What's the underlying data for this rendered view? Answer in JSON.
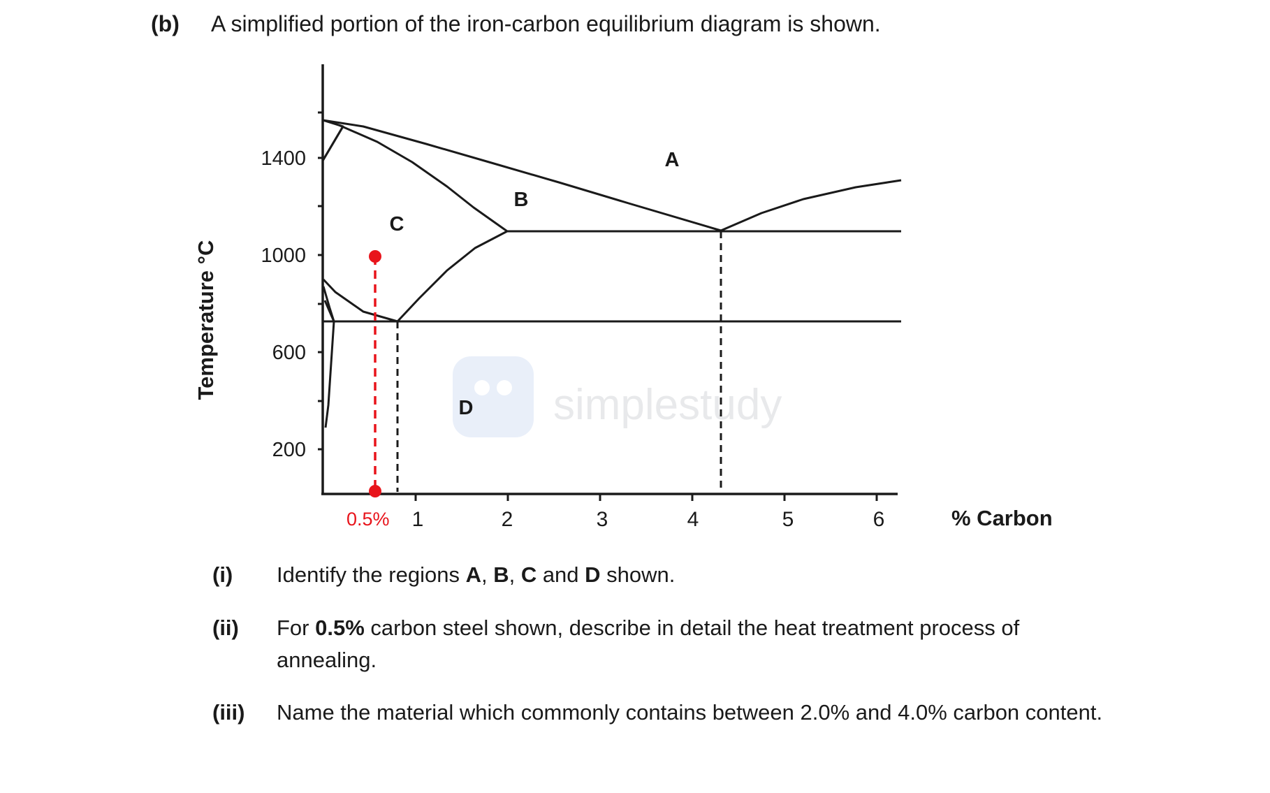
{
  "question": {
    "number": "(b)",
    "text": "A simplified portion of the iron-carbon equilibrium diagram is shown."
  },
  "diagram": {
    "y_axis_label": "Temperature °C",
    "x_axis_label": "% Carbon",
    "y_ticks": [
      "1400",
      "1000",
      "600",
      "200"
    ],
    "x_ticks": [
      "1",
      "2",
      "3",
      "4",
      "5",
      "6"
    ],
    "marker_label": "0.5%",
    "regions": [
      "A",
      "B",
      "C",
      "D"
    ],
    "watermark": "simplestudy",
    "marker_color": "#e8141b"
  },
  "parts": [
    {
      "number": "(i)",
      "segments": [
        {
          "t": "Identify the regions ",
          "b": false
        },
        {
          "t": "A",
          "b": true
        },
        {
          "t": ", ",
          "b": false
        },
        {
          "t": "B",
          "b": true
        },
        {
          "t": ", ",
          "b": false
        },
        {
          "t": "C",
          "b": true
        },
        {
          "t": " and ",
          "b": false
        },
        {
          "t": "D",
          "b": true
        },
        {
          "t": " shown.",
          "b": false
        }
      ]
    },
    {
      "number": "(ii)",
      "segments": [
        {
          "t": "For ",
          "b": false
        },
        {
          "t": "0.5%",
          "b": true
        },
        {
          "t": " carbon steel shown, describe in detail the heat treatment process of annealing.",
          "b": false
        }
      ]
    },
    {
      "number": "(iii)",
      "segments": [
        {
          "t": "Name the material which commonly contains between 2.0% and 4.0% carbon content.",
          "b": false
        }
      ]
    }
  ]
}
